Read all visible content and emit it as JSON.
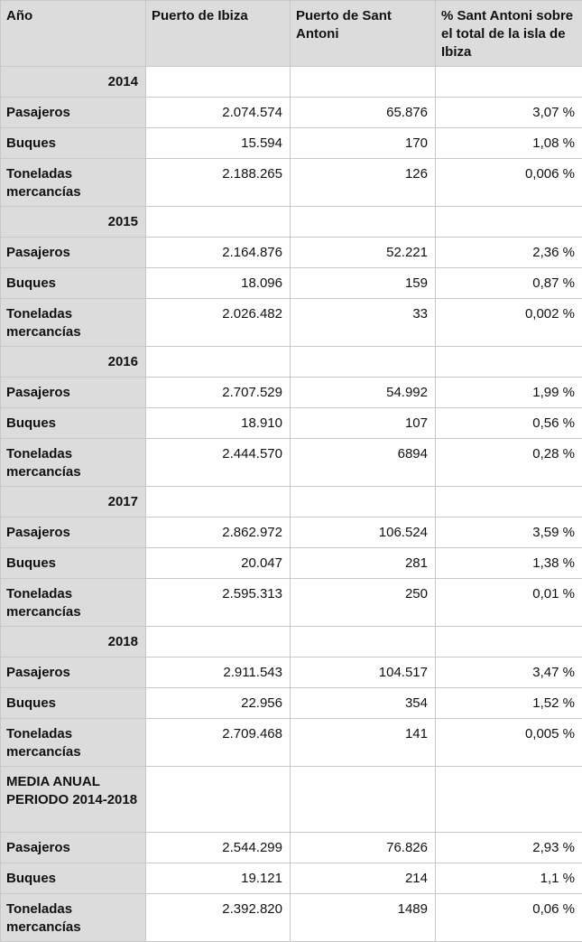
{
  "headers": [
    "Año",
    "Puerto de Ibiza",
    "Puerto de Sant Antoni",
    "% Sant Antoni sobre el total de la isla de Ibiza"
  ],
  "rows": [
    {
      "kind": "year",
      "label": "2014",
      "values": [
        "",
        "",
        ""
      ]
    },
    {
      "kind": "data",
      "label": "Pasajeros",
      "values": [
        "2.074.574",
        "65.876",
        "3,07 %"
      ]
    },
    {
      "kind": "data",
      "label": "Buques",
      "values": [
        "15.594",
        "170",
        "1,08 %"
      ]
    },
    {
      "kind": "data",
      "label": "Toneladas mercancías",
      "values": [
        "2.188.265",
        "126",
        "0,006 %"
      ]
    },
    {
      "kind": "year",
      "label": "2015",
      "values": [
        "",
        "",
        ""
      ]
    },
    {
      "kind": "data",
      "label": "Pasajeros",
      "values": [
        "2.164.876",
        "52.221",
        "2,36 %"
      ]
    },
    {
      "kind": "data",
      "label": "Buques",
      "values": [
        "18.096",
        "159",
        "0,87 %"
      ]
    },
    {
      "kind": "data",
      "label": "Toneladas mercancías",
      "values": [
        "2.026.482",
        "33",
        "0,002 %"
      ]
    },
    {
      "kind": "year",
      "label": "2016",
      "values": [
        "",
        "",
        ""
      ]
    },
    {
      "kind": "data",
      "label": "Pasajeros",
      "values": [
        "2.707.529",
        "54.992",
        "1,99 %"
      ]
    },
    {
      "kind": "data",
      "label": "Buques",
      "values": [
        "18.910",
        "107",
        "0,56 %"
      ]
    },
    {
      "kind": "data",
      "label": "Toneladas mercancías",
      "values": [
        "2.444.570",
        "6894",
        "0,28 %"
      ]
    },
    {
      "kind": "year",
      "label": "2017",
      "values": [
        "",
        "",
        ""
      ]
    },
    {
      "kind": "data",
      "label": "Pasajeros",
      "values": [
        "2.862.972",
        "106.524",
        "3,59 %"
      ]
    },
    {
      "kind": "data",
      "label": "Buques",
      "values": [
        "20.047",
        "281",
        "1,38 %"
      ]
    },
    {
      "kind": "data",
      "label": "Toneladas mercancías",
      "values": [
        "2.595.313",
        "250",
        "0,01 %"
      ]
    },
    {
      "kind": "year",
      "label": "2018",
      "values": [
        "",
        "",
        ""
      ]
    },
    {
      "kind": "data",
      "label": "Pasajeros",
      "values": [
        "2.911.543",
        "104.517",
        "3,47 %"
      ]
    },
    {
      "kind": "data",
      "label": "Buques",
      "values": [
        "22.956",
        "354",
        "1,52 %"
      ]
    },
    {
      "kind": "data",
      "label": "Toneladas mercancías",
      "values": [
        "2.709.468",
        "141",
        "0,005 %"
      ]
    },
    {
      "kind": "section",
      "label": "MEDIA ANUAL PERIODO 2014-2018",
      "values": [
        "",
        "",
        ""
      ]
    },
    {
      "kind": "data",
      "label": "Pasajeros",
      "values": [
        "2.544.299",
        "76.826",
        "2,93 %"
      ]
    },
    {
      "kind": "data",
      "label": "Buques",
      "values": [
        "19.121",
        "214",
        "1,1 %"
      ]
    },
    {
      "kind": "data",
      "label": "Toneladas mercancías",
      "values": [
        "2.392.820",
        "1489",
        "0,06 %"
      ]
    }
  ]
}
